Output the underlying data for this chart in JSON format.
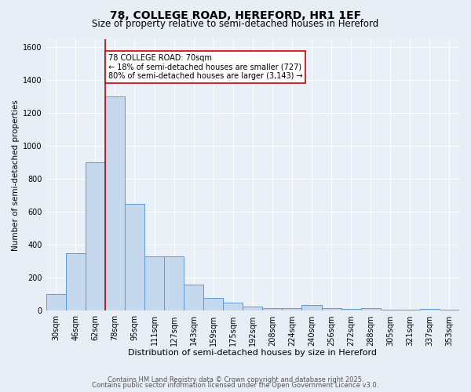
{
  "title1": "78, COLLEGE ROAD, HEREFORD, HR1 1EF",
  "title2": "Size of property relative to semi-detached houses in Hereford",
  "categories": [
    "30sqm",
    "46sqm",
    "62sqm",
    "78sqm",
    "95sqm",
    "111sqm",
    "127sqm",
    "143sqm",
    "159sqm",
    "175sqm",
    "192sqm",
    "208sqm",
    "224sqm",
    "240sqm",
    "256sqm",
    "272sqm",
    "288sqm",
    "305sqm",
    "321sqm",
    "337sqm",
    "353sqm"
  ],
  "values": [
    100,
    350,
    900,
    1300,
    650,
    330,
    330,
    160,
    80,
    50,
    25,
    15,
    15,
    35,
    15,
    10,
    15,
    5,
    5,
    10,
    5
  ],
  "bar_color": "#c5d8ed",
  "bar_edge_color": "#5b9bd5",
  "red_line_index": 2.5,
  "property_label": "78 COLLEGE ROAD: 70sqm",
  "smaller_pct": "← 18% of semi-detached houses are smaller (727)",
  "larger_pct": "80% of semi-detached houses are larger (3,143) →",
  "xlabel": "Distribution of semi-detached houses by size in Hereford",
  "ylabel": "Number of semi-detached properties",
  "ylim": [
    0,
    1650
  ],
  "yticks": [
    0,
    200,
    400,
    600,
    800,
    1000,
    1200,
    1400,
    1600
  ],
  "background_color": "#e8eef5",
  "plot_background": "#eaf0f7",
  "grid_color": "#ffffff",
  "footer1": "Contains HM Land Registry data © Crown copyright and database right 2025.",
  "footer2": "Contains public sector information licensed under the Open Government Licence v3.0.",
  "annotation_box_color": "#ffffff",
  "annotation_box_edge": "#cc0000",
  "red_line_color": "#cc0000",
  "title1_fontsize": 10,
  "title2_fontsize": 8.5,
  "xlabel_fontsize": 8,
  "ylabel_fontsize": 7.5,
  "tick_fontsize": 7,
  "footer_fontsize": 6,
  "annot_fontsize": 7
}
